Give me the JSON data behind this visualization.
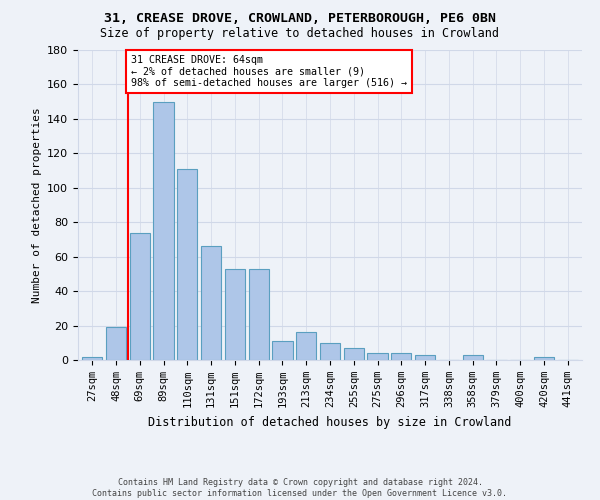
{
  "title1": "31, CREASE DROVE, CROWLAND, PETERBOROUGH, PE6 0BN",
  "title2": "Size of property relative to detached houses in Crowland",
  "xlabel": "Distribution of detached houses by size in Crowland",
  "ylabel": "Number of detached properties",
  "footnote": "Contains HM Land Registry data © Crown copyright and database right 2024.\nContains public sector information licensed under the Open Government Licence v3.0.",
  "bar_labels": [
    "27sqm",
    "48sqm",
    "69sqm",
    "89sqm",
    "110sqm",
    "131sqm",
    "151sqm",
    "172sqm",
    "193sqm",
    "213sqm",
    "234sqm",
    "255sqm",
    "275sqm",
    "296sqm",
    "317sqm",
    "338sqm",
    "358sqm",
    "379sqm",
    "400sqm",
    "420sqm",
    "441sqm"
  ],
  "bar_values": [
    2,
    19,
    74,
    150,
    111,
    66,
    53,
    53,
    11,
    16,
    10,
    7,
    4,
    4,
    3,
    0,
    3,
    0,
    0,
    2,
    0
  ],
  "bar_color": "#aec6e8",
  "bar_edge_color": "#5a9fc0",
  "vline_x": 1.5,
  "vline_color": "red",
  "annotation_text": "31 CREASE DROVE: 64sqm\n← 2% of detached houses are smaller (9)\n98% of semi-detached houses are larger (516) →",
  "annotation_box_color": "white",
  "annotation_box_edge_color": "red",
  "ylim": [
    0,
    180
  ],
  "yticks": [
    0,
    20,
    40,
    60,
    80,
    100,
    120,
    140,
    160,
    180
  ],
  "grid_color": "#d0d8e8",
  "background_color": "#eef2f8"
}
